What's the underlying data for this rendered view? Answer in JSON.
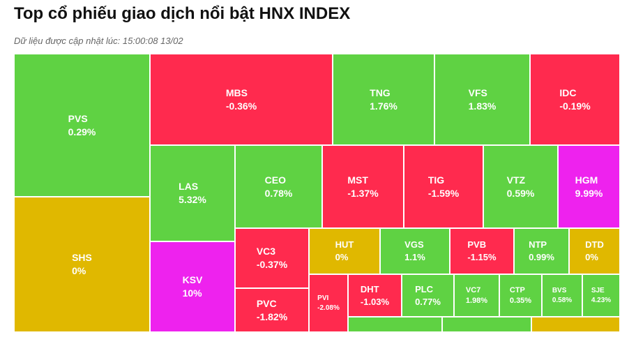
{
  "header": {
    "title": "Top cổ phiếu giao dịch nổi bật HNX INDEX",
    "updated": "Dữ liệu được cập nhật lúc: 15:00:08 13/02"
  },
  "colors": {
    "up": "#5fd243",
    "down": "#ff2a4e",
    "flat": "#e0b800",
    "ceiling": "#ee22ee"
  },
  "stocks": [
    {
      "symbol": "PVS",
      "change": "0.29%",
      "status": "up"
    },
    {
      "symbol": "SHS",
      "change": "0%",
      "status": "flat"
    },
    {
      "symbol": "MBS",
      "change": "-0.36%",
      "status": "down"
    },
    {
      "symbol": "TNG",
      "change": "1.76%",
      "status": "up"
    },
    {
      "symbol": "VFS",
      "change": "1.83%",
      "status": "up"
    },
    {
      "symbol": "IDC",
      "change": "-0.19%",
      "status": "down"
    },
    {
      "symbol": "LAS",
      "change": "5.32%",
      "status": "up"
    },
    {
      "symbol": "KSV",
      "change": "10%",
      "status": "ceiling"
    },
    {
      "symbol": "CEO",
      "change": "0.78%",
      "status": "up"
    },
    {
      "symbol": "MST",
      "change": "-1.37%",
      "status": "down"
    },
    {
      "symbol": "TIG",
      "change": "-1.59%",
      "status": "down"
    },
    {
      "symbol": "VTZ",
      "change": "0.59%",
      "status": "up"
    },
    {
      "symbol": "HGM",
      "change": "9.99%",
      "status": "ceiling"
    },
    {
      "symbol": "VC3",
      "change": "-0.37%",
      "status": "down"
    },
    {
      "symbol": "PVC",
      "change": "-1.82%",
      "status": "down"
    },
    {
      "symbol": "HUT",
      "change": "0%",
      "status": "flat"
    },
    {
      "symbol": "VGS",
      "change": "1.1%",
      "status": "up"
    },
    {
      "symbol": "PVB",
      "change": "-1.15%",
      "status": "down"
    },
    {
      "symbol": "NTP",
      "change": "0.99%",
      "status": "up"
    },
    {
      "symbol": "DTD",
      "change": "0%",
      "status": "flat"
    },
    {
      "symbol": "PVI",
      "change": "-2.08%",
      "status": "down"
    },
    {
      "symbol": "DHT",
      "change": "-1.03%",
      "status": "down"
    },
    {
      "symbol": "PLC",
      "change": "0.77%",
      "status": "up"
    },
    {
      "symbol": "VC7",
      "change": "1.98%",
      "status": "up"
    },
    {
      "symbol": "CTP",
      "change": "0.35%",
      "status": "up"
    },
    {
      "symbol": "BVS",
      "change": "0.58%",
      "status": "up"
    },
    {
      "symbol": "SJE",
      "change": "4.23%",
      "status": "up"
    }
  ],
  "unlabeled_tiles": [
    "up",
    "up",
    "flat"
  ]
}
